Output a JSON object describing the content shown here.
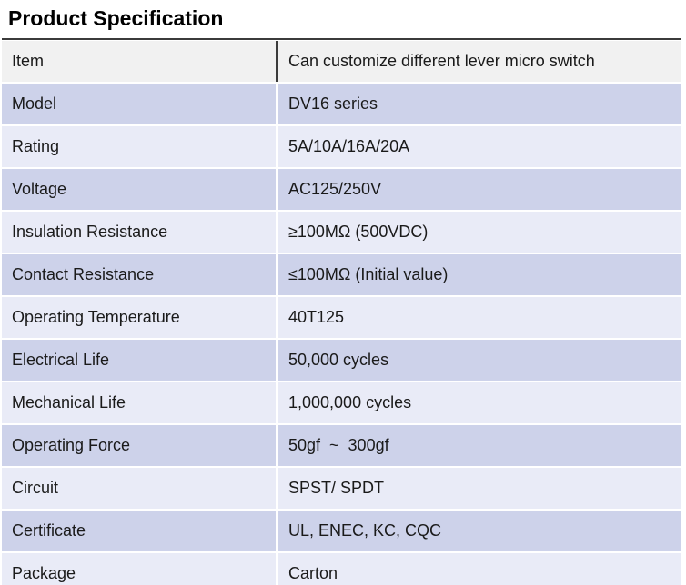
{
  "page_title": "Product Specification",
  "table": {
    "rows": [
      {
        "label": "Item",
        "value": "Can customize different lever micro switch"
      },
      {
        "label": "Model",
        "value": "DV16 series"
      },
      {
        "label": "Rating",
        "value": "5A/10A/16A/20A"
      },
      {
        "label": "Voltage",
        "value": "AC125/250V"
      },
      {
        "label": "Insulation Resistance",
        "value": "≥100MΩ (500VDC)"
      },
      {
        "label": "Contact Resistance",
        "value": "≤100MΩ (Initial value)"
      },
      {
        "label": "Operating Temperature",
        "value": "40T125"
      },
      {
        "label": "Electrical Life",
        "value": "50,000 cycles"
      },
      {
        "label": "Mechanical Life",
        "value": "1,000,000 cycles"
      },
      {
        "label": "Operating Force",
        "value": "50gf  ~  300gf"
      },
      {
        "label": "Circuit",
        "value": "SPST/ SPDT"
      },
      {
        "label": "Certificate",
        "value": "UL, ENEC, KC, CQC"
      },
      {
        "label": "Package",
        "value": "Carton"
      }
    ]
  },
  "colors": {
    "header_row_bg": "#f1f1f1",
    "row_medium_bg": "#cdd2ea",
    "row_light_bg": "#e9ebf7",
    "rule": "#3b3b3b",
    "text": "#1a1a1a"
  }
}
